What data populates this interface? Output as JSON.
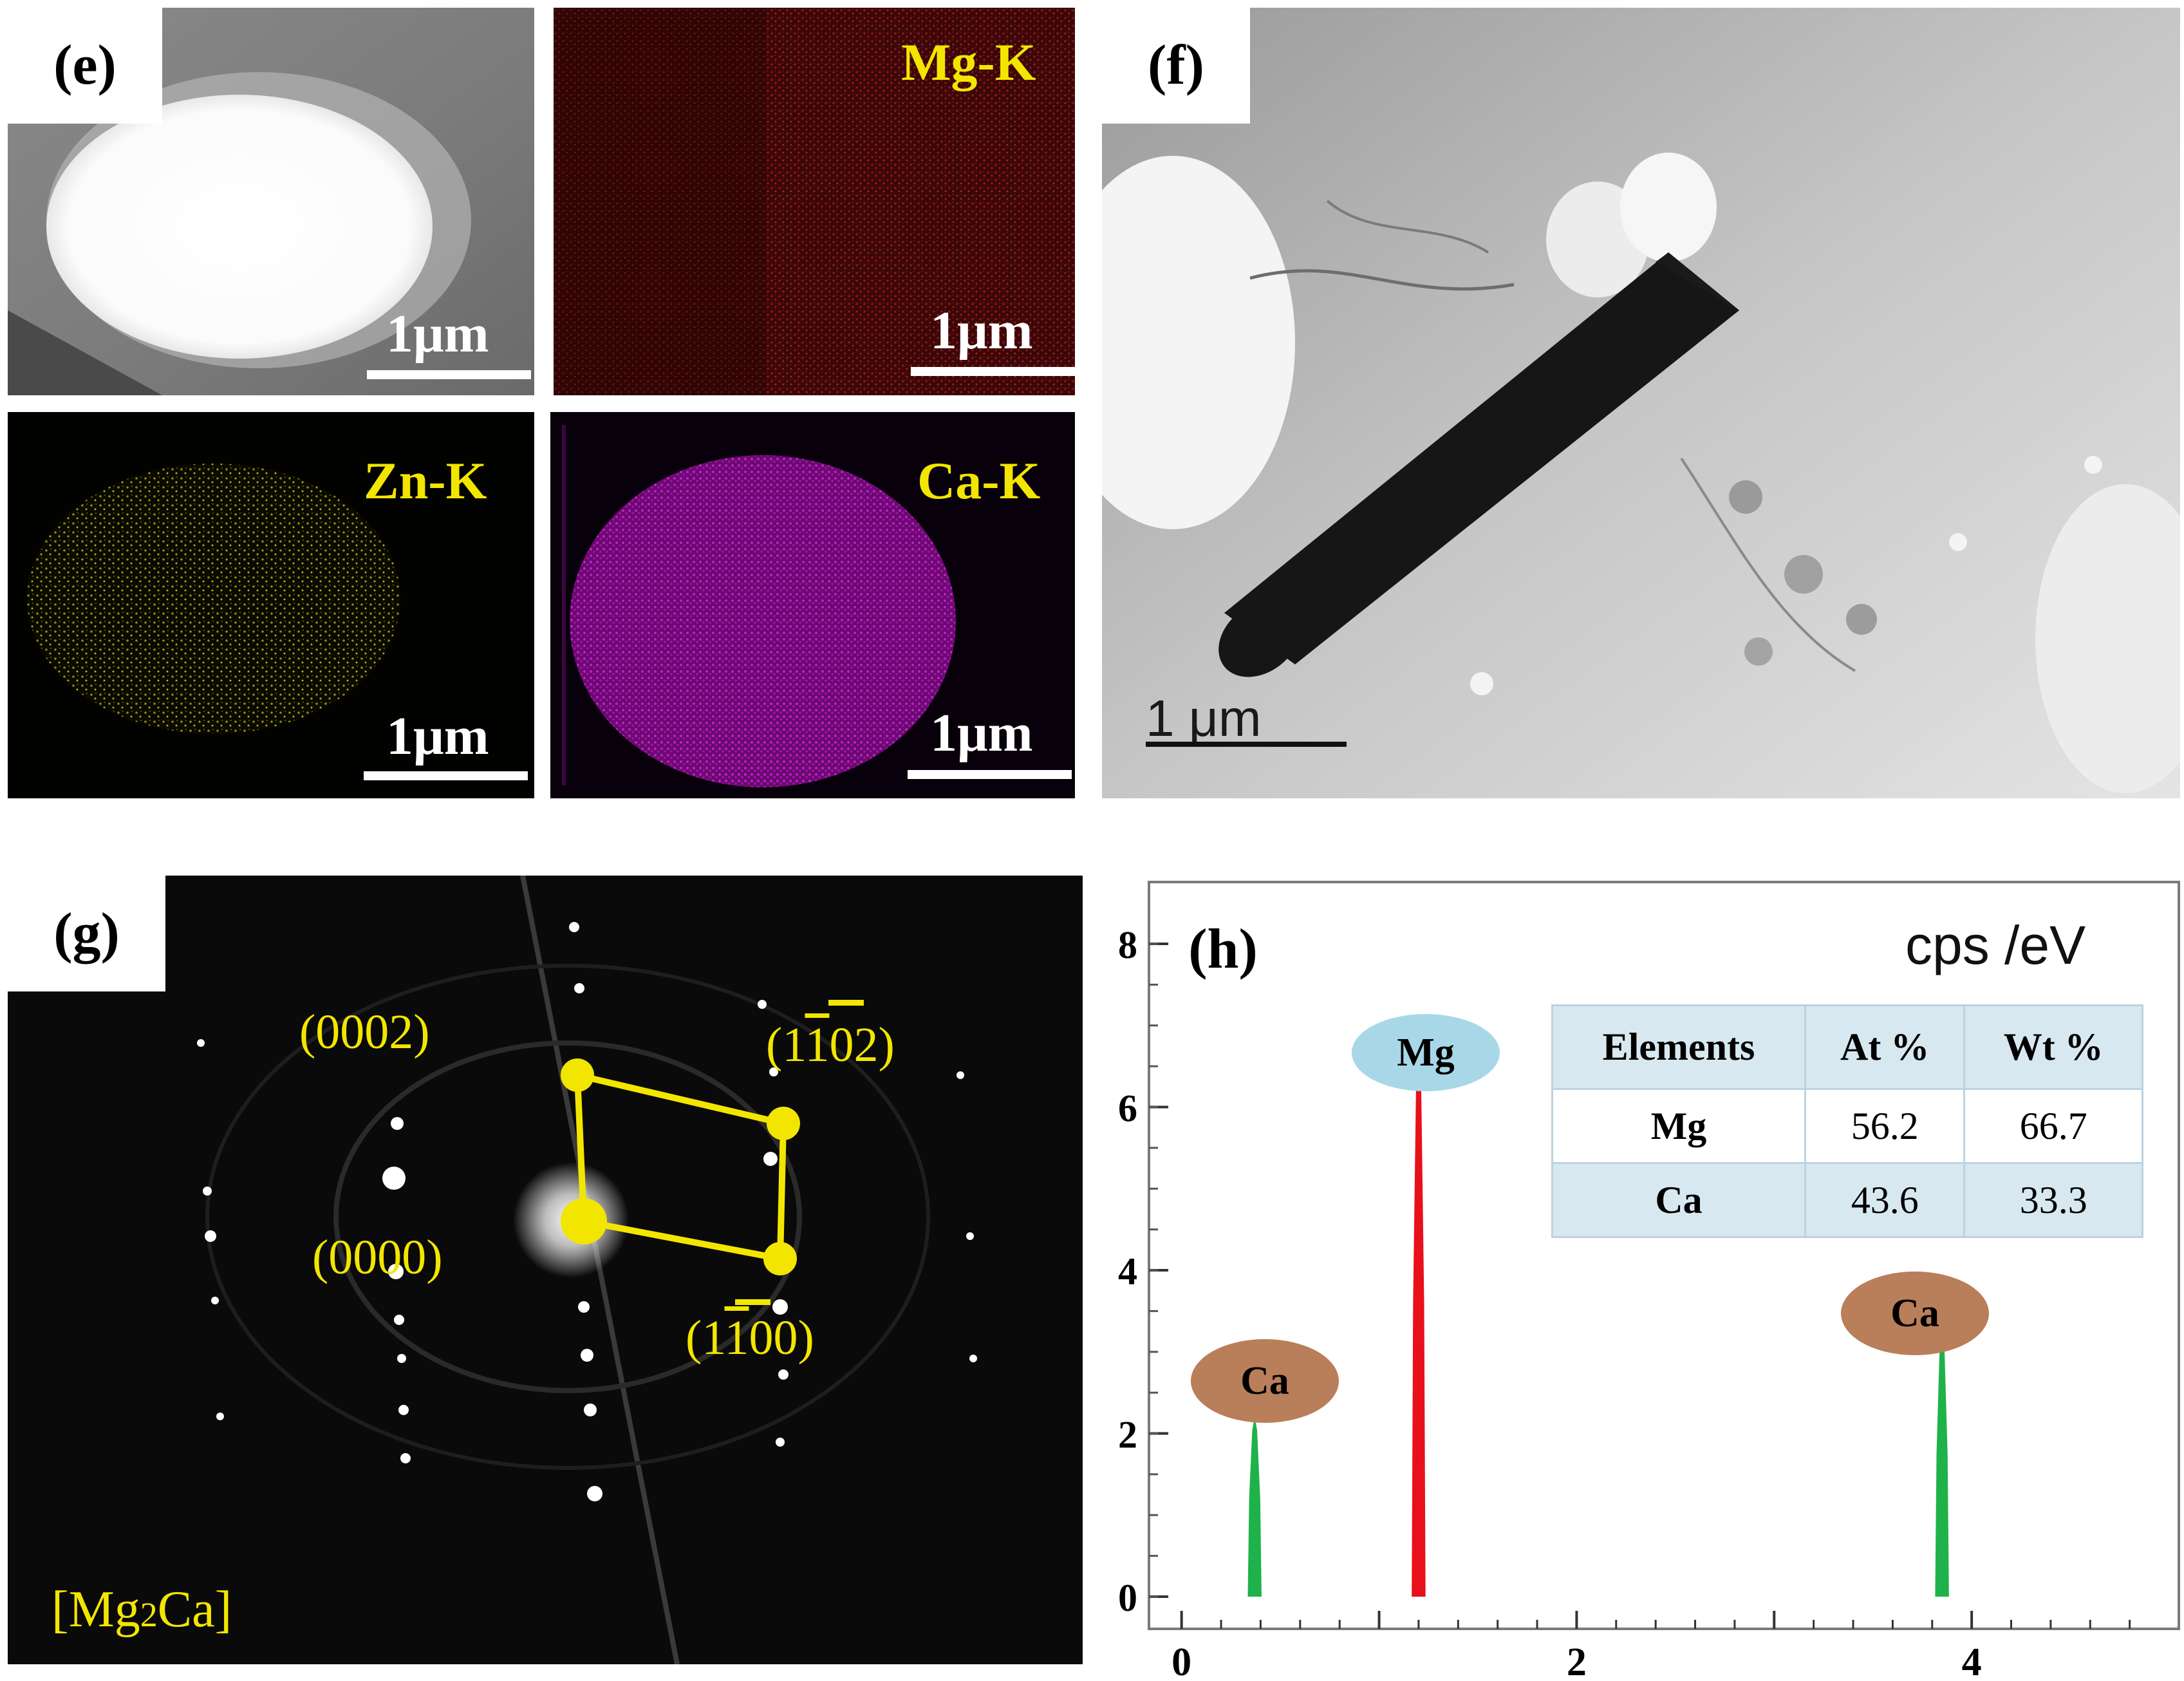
{
  "panels": {
    "e": {
      "label": "(e)",
      "scale_bar": "1μm",
      "maps": {
        "mg": "Mg-K",
        "zn": "Zn-K",
        "ca": "Ca-K"
      }
    },
    "f": {
      "label": "(f)",
      "scale_bar": "1 μm"
    },
    "g": {
      "label": "(g)",
      "phase": "[Mg2Ca]",
      "phase_base": "[Mg",
      "phase_sub": "2",
      "phase_end": "Ca]",
      "spots": {
        "s0002": "(0002)",
        "s0000": "(0000)",
        "s1102": "(1102)",
        "s1100": "(1100)"
      }
    },
    "h": {
      "label": "(h)",
      "unit": "cps /eV",
      "peaks": {
        "ca_low": "Ca",
        "mg": "Mg",
        "ca_high": "Ca"
      },
      "table": {
        "headers": [
          "Elements",
          "At %",
          "Wt %"
        ],
        "rows": [
          {
            "element": "Mg",
            "at": "56.2",
            "wt": "66.7"
          },
          {
            "element": "Ca",
            "at": "43.6",
            "wt": "33.3"
          }
        ]
      }
    }
  },
  "colors": {
    "label_yellow": "#f2e600",
    "mg_peak": "#e8101a",
    "ca_peak": "#1fb24a",
    "mg_bubble": "#a8d8e8",
    "ca_bubble": "#b97e5a",
    "table_blue": "#d8e8f0"
  },
  "chart_data": {
    "type": "area",
    "title": "",
    "xlabel": "",
    "ylabel": "cps /eV",
    "xlim": [
      -0.1,
      5.0
    ],
    "ylim": [
      0,
      8.6
    ],
    "xticks": [
      0,
      2,
      4
    ],
    "yticks": [
      0,
      2,
      4,
      6,
      8
    ],
    "series": [
      {
        "name": "Ca",
        "color": "#1fb24a",
        "peak_x": 0.37,
        "peak_y": 2.2
      },
      {
        "name": "Mg",
        "color": "#e8101a",
        "peak_x": 1.2,
        "peak_y": 6.55
      },
      {
        "name": "Ca",
        "color": "#1fb24a",
        "peak_x": 3.85,
        "peak_y": 3.2
      }
    ]
  }
}
